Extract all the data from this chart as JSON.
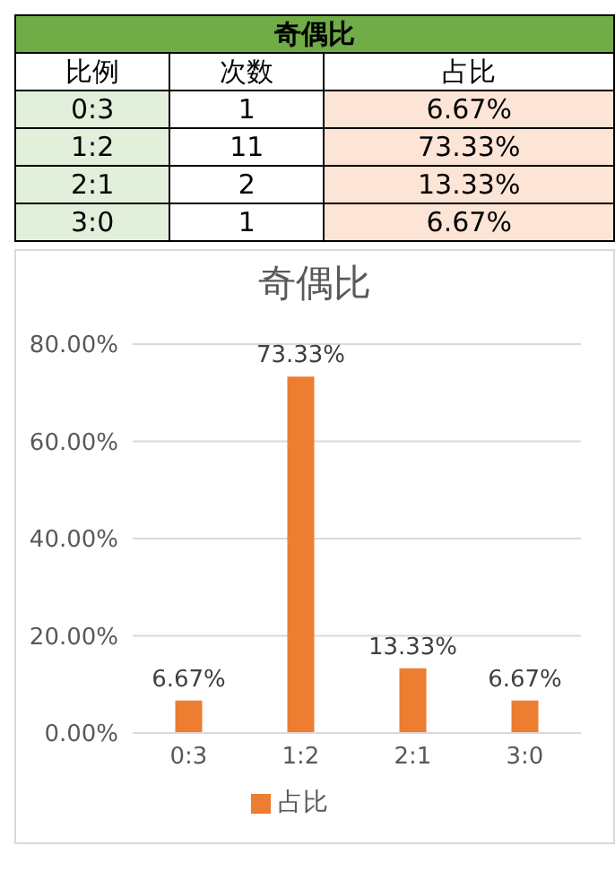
{
  "chart_data": [
    {
      "type": "other",
      "title": "奇偶比",
      "xlabel": "比例",
      "categories": [
        "0:3",
        "1:2",
        "2:1",
        "3:0"
      ],
      "data_labels": true,
      "series": [
        {
          "name": "次数",
          "values": [
            1,
            11,
            2,
            1
          ]
        },
        {
          "name": "占比",
          "values": [
            6.67,
            73.33,
            13.33,
            6.67
          ],
          "value_labels": [
            "6.67%",
            "73.33%",
            "13.33%",
            "6.67%"
          ]
        }
      ]
    },
    {
      "type": "bar",
      "title": "奇偶比",
      "categories": [
        "0:3",
        "1:2",
        "2:1",
        "3:0"
      ],
      "ylim": [
        0,
        80
      ],
      "yticks": [
        {
          "value": 0,
          "label": "0.00%"
        },
        {
          "value": 20,
          "label": "20.00%"
        },
        {
          "value": 40,
          "label": "40.00%"
        },
        {
          "value": 60,
          "label": "60.00%"
        },
        {
          "value": 80,
          "label": "80.00%"
        }
      ],
      "grid": "y",
      "legend": "bottom",
      "series": [
        {
          "name": "占比",
          "color": "#ed7d31",
          "values": [
            6.67,
            73.33,
            13.33,
            6.67
          ],
          "value_labels": [
            "6.67%",
            "73.33%",
            "13.33%",
            "6.67%"
          ]
        }
      ]
    }
  ]
}
